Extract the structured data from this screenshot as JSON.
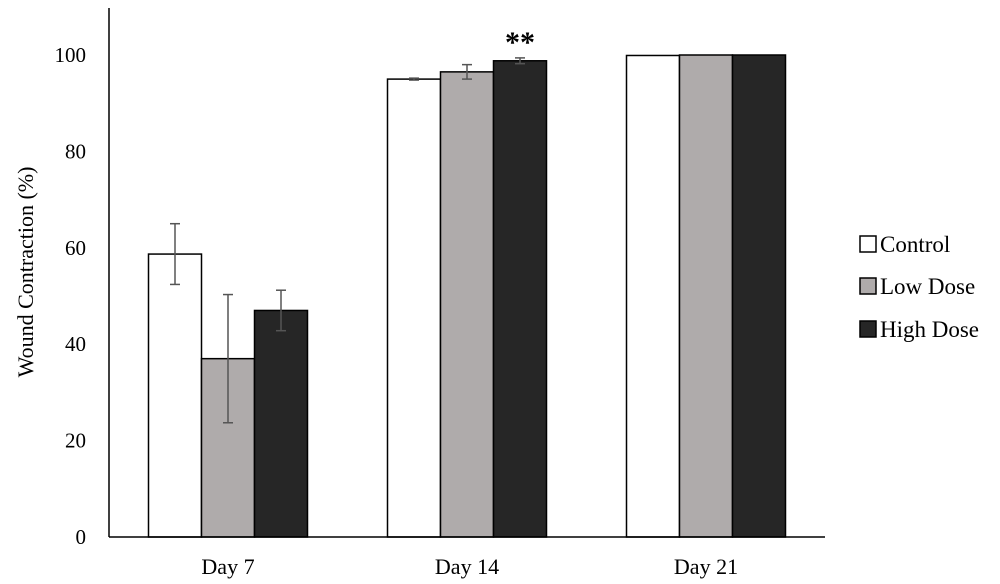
{
  "chart_data": {
    "type": "bar",
    "title": "",
    "xlabel": "",
    "ylabel": "Wound Contraction (%)",
    "ylim": [
      0,
      100
    ],
    "yticks": [
      0,
      20,
      40,
      60,
      80,
      100
    ],
    "categories": [
      "Day 7",
      "Day 14",
      "Day 21"
    ],
    "series": [
      {
        "name": "Control",
        "color": "#ffffff",
        "values": [
          58.7,
          95.0,
          99.9
        ],
        "errors": [
          6.3,
          0.2,
          0.1
        ]
      },
      {
        "name": "Low Dose",
        "color": "#afabab",
        "values": [
          37.0,
          96.5,
          100.0
        ],
        "errors": [
          13.3,
          1.5,
          0.1
        ]
      },
      {
        "name": "High Dose",
        "color": "#262626",
        "values": [
          47.0,
          98.8,
          100.0
        ],
        "errors": [
          4.2,
          0.6,
          0.1
        ]
      }
    ],
    "annotations": [
      {
        "text": "**",
        "category": "Day 14",
        "series": "High Dose"
      }
    ],
    "legend_position": "right",
    "grid": false
  }
}
